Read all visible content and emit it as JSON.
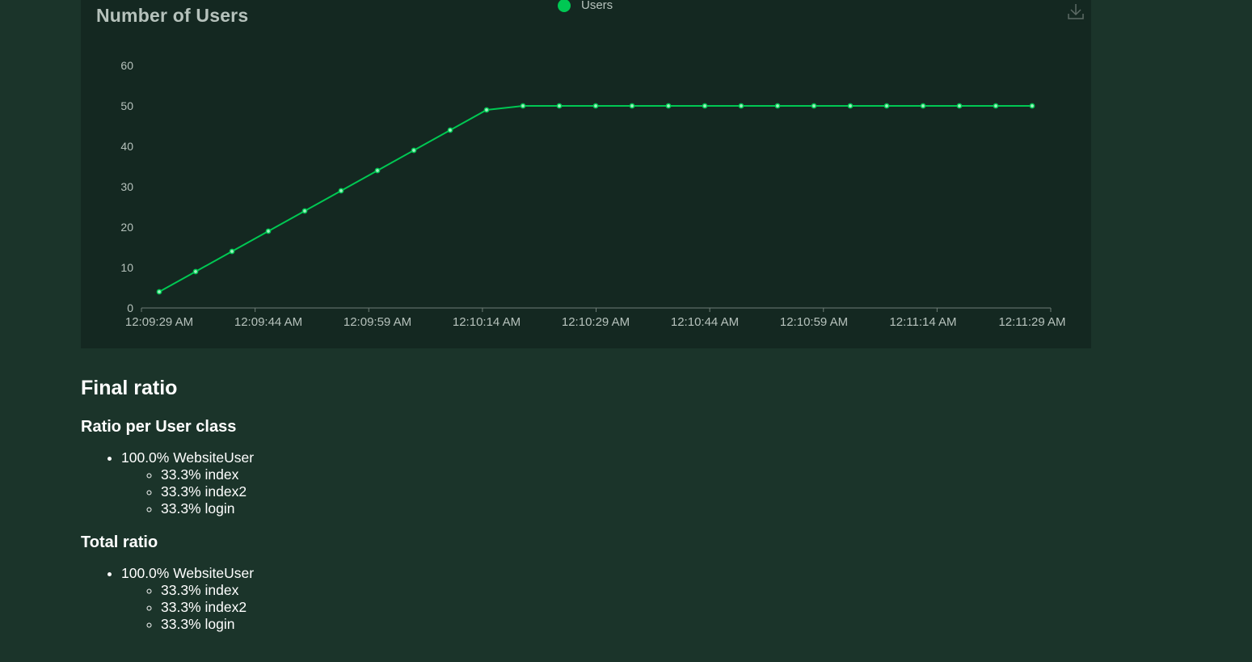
{
  "chart": {
    "title": "Number of Users",
    "legend_label": "Users",
    "series_color": "#00c853",
    "download_icon": "download-icon"
  },
  "chart_data": {
    "type": "line",
    "title": "Number of Users",
    "xlabel": "",
    "ylabel": "",
    "ylim": [
      0,
      60
    ],
    "yticks": [
      0,
      10,
      20,
      30,
      40,
      50,
      60
    ],
    "xtick_labels": [
      "12:09:29 AM",
      "12:09:44 AM",
      "12:09:59 AM",
      "12:10:14 AM",
      "12:10:29 AM",
      "12:10:44 AM",
      "12:10:59 AM",
      "12:11:14 AM",
      "12:11:29 AM"
    ],
    "grid": false,
    "legend": "top-center",
    "series": [
      {
        "name": "Users",
        "x": [
          "12:09:29 AM",
          "12:09:34 AM",
          "12:09:39 AM",
          "12:09:44 AM",
          "12:09:49 AM",
          "12:09:54 AM",
          "12:09:59 AM",
          "12:10:04 AM",
          "12:10:09 AM",
          "12:10:14 AM",
          "12:10:19 AM",
          "12:10:24 AM",
          "12:10:29 AM",
          "12:10:34 AM",
          "12:10:39 AM",
          "12:10:44 AM",
          "12:10:49 AM",
          "12:10:54 AM",
          "12:10:59 AM",
          "12:11:04 AM",
          "12:11:09 AM",
          "12:11:14 AM",
          "12:11:19 AM",
          "12:11:24 AM",
          "12:11:29 AM"
        ],
        "values": [
          4,
          9,
          14,
          19,
          24,
          29,
          34,
          39,
          44,
          49,
          50,
          50,
          50,
          50,
          50,
          50,
          50,
          50,
          50,
          50,
          50,
          50,
          50,
          50,
          50
        ]
      }
    ]
  },
  "final_ratio": {
    "heading": "Final ratio",
    "per_class": {
      "heading": "Ratio per User class",
      "user": "100.0% WebsiteUser",
      "tasks": [
        "33.3% index",
        "33.3% index2",
        "33.3% login"
      ]
    },
    "total": {
      "heading": "Total ratio",
      "user": "100.0% WebsiteUser",
      "tasks": [
        "33.3% index",
        "33.3% index2",
        "33.3% login"
      ]
    }
  }
}
